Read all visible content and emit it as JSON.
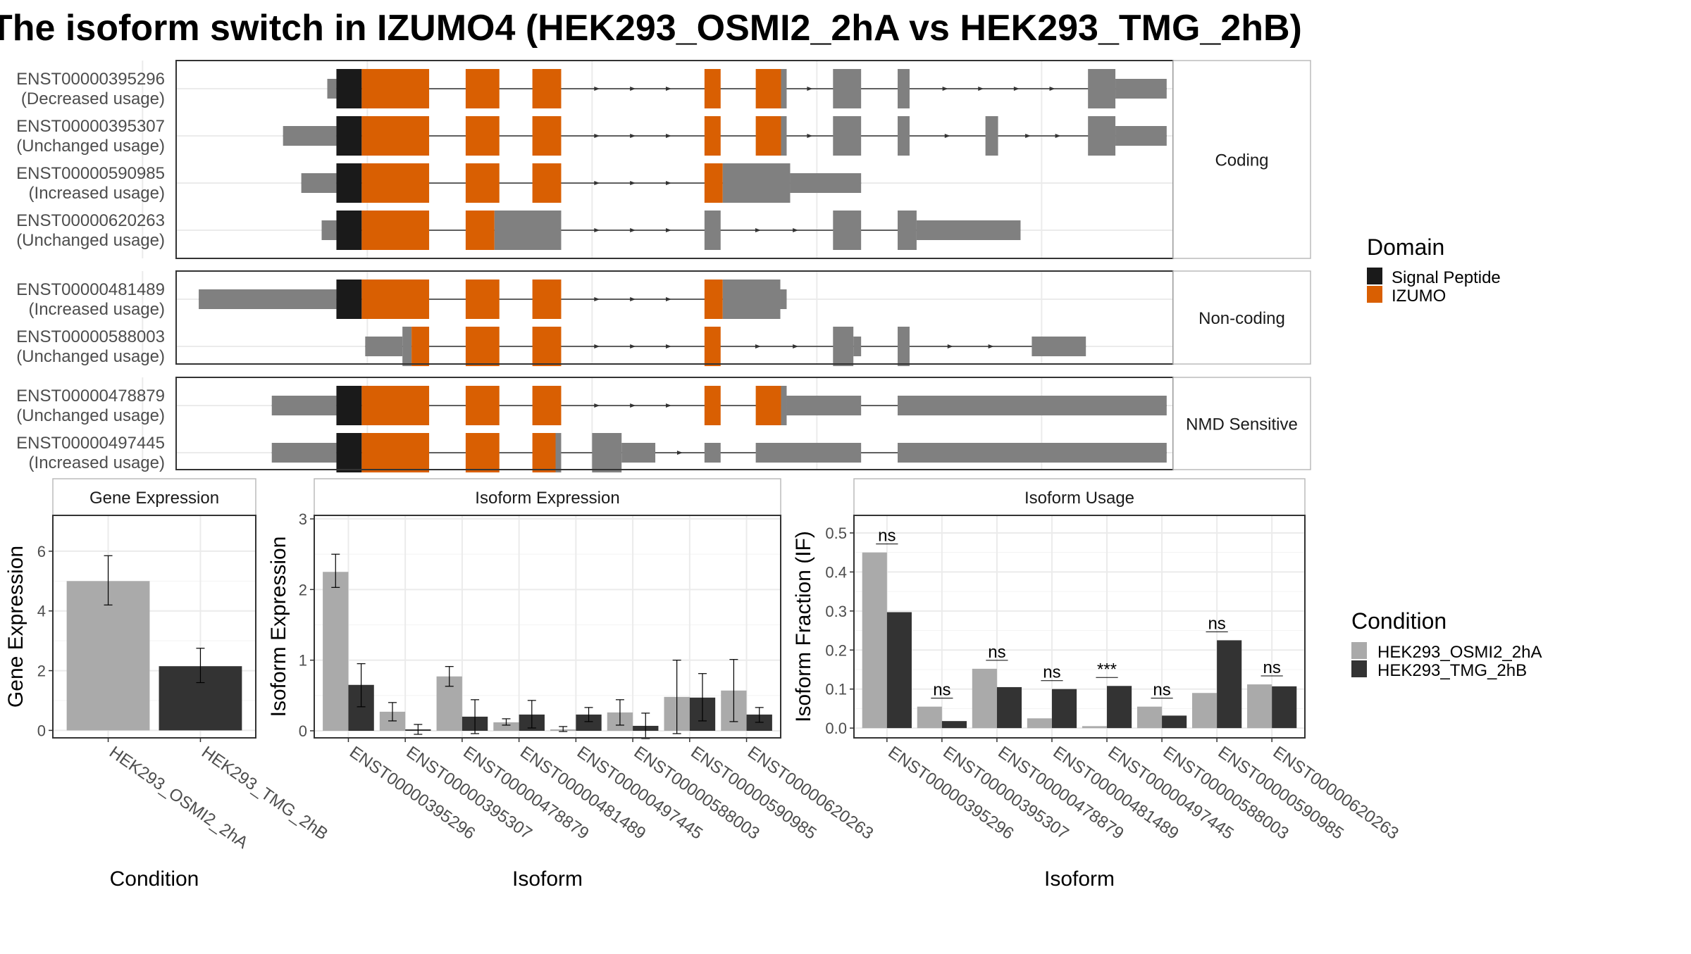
{
  "title": "The isoform switch in IZUMO4 (HEK293_OSMI2_2hA vs HEK293_TMG_2hB)",
  "colors": {
    "signal_peptide": "#1a1a1a",
    "izumo": "#d95f02",
    "exon": "#808080",
    "cond_a": "#aaaaaa",
    "cond_b": "#333333",
    "grid": "#ebebeb"
  },
  "chart_data": [
    {
      "type": "gene_structure",
      "x_range": [
        0,
        1300
      ],
      "groups": [
        {
          "label": "Coding",
          "transcripts": [
            {
              "id": "ENST00000395296",
              "usage": "(Decreased usage)",
              "exons": [
                [
                  163,
                  176,
                  "thin"
                ],
                [
                  176,
                  212,
                  "sig"
                ],
                [
                  212,
                  308,
                  "izumo"
                ],
                [
                  360,
                  408,
                  "izumo"
                ],
                [
                  455,
                  496,
                  "izumo"
                ],
                [
                  700,
                  723,
                  "izumo"
                ],
                [
                  773,
                  809,
                  "izumo"
                ],
                [
                  809,
                  817,
                  "gray"
                ],
                [
                  883,
                  923,
                  "gray"
                ],
                [
                  975,
                  992,
                  "gray"
                ],
                [
                  1246,
                  1285,
                  "gray"
                ],
                [
                  1285,
                  1358,
                  "thin"
                ]
              ]
            },
            {
              "id": "ENST00000395307",
              "usage": "(Unchanged usage)",
              "exons": [
                [
                  100,
                  176,
                  "thin"
                ],
                [
                  176,
                  212,
                  "sig"
                ],
                [
                  212,
                  308,
                  "izumo"
                ],
                [
                  360,
                  408,
                  "izumo"
                ],
                [
                  455,
                  496,
                  "izumo"
                ],
                [
                  700,
                  723,
                  "izumo"
                ],
                [
                  773,
                  809,
                  "izumo"
                ],
                [
                  809,
                  817,
                  "gray"
                ],
                [
                  883,
                  923,
                  "gray"
                ],
                [
                  975,
                  992,
                  "gray"
                ],
                [
                  1100,
                  1118,
                  "gray"
                ],
                [
                  1246,
                  1285,
                  "gray"
                ],
                [
                  1285,
                  1358,
                  "thin"
                ]
              ]
            },
            {
              "id": "ENST00000590985",
              "usage": "(Increased usage)",
              "exons": [
                [
                  126,
                  176,
                  "thin"
                ],
                [
                  176,
                  212,
                  "sig"
                ],
                [
                  212,
                  308,
                  "izumo"
                ],
                [
                  360,
                  408,
                  "izumo"
                ],
                [
                  455,
                  496,
                  "izumo"
                ],
                [
                  700,
                  726,
                  "izumo"
                ],
                [
                  726,
                  822,
                  "gray"
                ],
                [
                  822,
                  923,
                  "thin"
                ]
              ]
            },
            {
              "id": "ENST00000620263",
              "usage": "(Unchanged usage)",
              "exons": [
                [
                  155,
                  176,
                  "thin"
                ],
                [
                  176,
                  212,
                  "sig"
                ],
                [
                  212,
                  308,
                  "izumo"
                ],
                [
                  360,
                  401,
                  "izumo"
                ],
                [
                  401,
                  496,
                  "gray"
                ],
                [
                  700,
                  723,
                  "gray"
                ],
                [
                  883,
                  923,
                  "gray"
                ],
                [
                  975,
                  1002,
                  "gray"
                ],
                [
                  1002,
                  1150,
                  "thin"
                ]
              ]
            }
          ]
        },
        {
          "label": "Non-coding",
          "transcripts": [
            {
              "id": "ENST00000481489",
              "usage": "(Increased usage)",
              "exons": [
                [
                  -20,
                  176,
                  "thin"
                ],
                [
                  176,
                  212,
                  "sig"
                ],
                [
                  212,
                  308,
                  "izumo"
                ],
                [
                  360,
                  408,
                  "izumo"
                ],
                [
                  455,
                  496,
                  "izumo"
                ],
                [
                  700,
                  726,
                  "izumo"
                ],
                [
                  726,
                  808,
                  "gray"
                ],
                [
                  808,
                  817,
                  "thin"
                ]
              ]
            },
            {
              "id": "ENST00000588003",
              "usage": "(Unchanged usage)",
              "exons": [
                [
                  217,
                  270,
                  "thin"
                ],
                [
                  270,
                  283,
                  "gray"
                ],
                [
                  283,
                  308,
                  "izumo"
                ],
                [
                  360,
                  408,
                  "izumo"
                ],
                [
                  455,
                  496,
                  "izumo"
                ],
                [
                  700,
                  723,
                  "izumo"
                ],
                [
                  883,
                  912,
                  "gray"
                ],
                [
                  912,
                  923,
                  "thin"
                ],
                [
                  975,
                  992,
                  "gray"
                ],
                [
                  1166,
                  1243,
                  "thin"
                ]
              ]
            }
          ]
        },
        {
          "label": "NMD Sensitive",
          "transcripts": [
            {
              "id": "ENST00000478879",
              "usage": "(Unchanged usage)",
              "exons": [
                [
                  84,
                  176,
                  "thin"
                ],
                [
                  176,
                  212,
                  "sig"
                ],
                [
                  212,
                  308,
                  "izumo"
                ],
                [
                  360,
                  408,
                  "izumo"
                ],
                [
                  455,
                  496,
                  "izumo"
                ],
                [
                  700,
                  723,
                  "izumo"
                ],
                [
                  773,
                  809,
                  "izumo"
                ],
                [
                  809,
                  817,
                  "gray"
                ],
                [
                  817,
                  923,
                  "thin"
                ],
                [
                  975,
                  1358,
                  "thin"
                ]
              ]
            },
            {
              "id": "ENST00000497445",
              "usage": "(Increased usage)",
              "exons": [
                [
                  84,
                  176,
                  "thin"
                ],
                [
                  176,
                  212,
                  "sig"
                ],
                [
                  212,
                  308,
                  "izumo"
                ],
                [
                  360,
                  408,
                  "izumo"
                ],
                [
                  455,
                  488,
                  "izumo"
                ],
                [
                  488,
                  496,
                  "gray"
                ],
                [
                  540,
                  582,
                  "gray"
                ],
                [
                  582,
                  630,
                  "thin"
                ],
                [
                  700,
                  723,
                  "thin"
                ],
                [
                  773,
                  923,
                  "thin"
                ],
                [
                  975,
                  1358,
                  "thin"
                ]
              ]
            }
          ]
        }
      ],
      "legend": {
        "title": "Domain",
        "entries": [
          "Signal Peptide",
          "IZUMO"
        ]
      }
    },
    {
      "type": "bar",
      "panel_title": "Gene Expression",
      "xlabel": "Condition",
      "ylabel": "Gene Expression",
      "categories": [
        "HEK293_OSMI2_2hA",
        "HEK293_TMG_2hB"
      ],
      "values": [
        5.0,
        2.15
      ],
      "errors": [
        [
          4.2,
          5.85
        ],
        [
          1.6,
          2.75
        ]
      ],
      "ylim": [
        -0.25,
        7.2
      ],
      "yticks": [
        0,
        2,
        4,
        6
      ]
    },
    {
      "type": "bar",
      "panel_title": "Isoform Expression",
      "xlabel": "Isoform",
      "ylabel": "Isoform Expression",
      "categories": [
        "ENST00000395296",
        "ENST00000395307",
        "ENST00000478879",
        "ENST00000481489",
        "ENST00000497445",
        "ENST00000588003",
        "ENST00000590985",
        "ENST00000620263"
      ],
      "series": [
        {
          "name": "HEK293_OSMI2_2hA",
          "values": [
            2.25,
            0.27,
            0.77,
            0.12,
            0.02,
            0.26,
            0.48,
            0.57
          ],
          "errors": [
            [
              2.03,
              2.5
            ],
            [
              0.14,
              0.4
            ],
            [
              0.63,
              0.91
            ],
            [
              0.08,
              0.17
            ],
            [
              -0.01,
              0.06
            ],
            [
              0.08,
              0.44
            ],
            [
              -0.04,
              1.0
            ],
            [
              0.13,
              1.01
            ]
          ]
        },
        {
          "name": "HEK293_TMG_2hB",
          "values": [
            0.65,
            0.02,
            0.2,
            0.23,
            0.23,
            0.07,
            0.47,
            0.23
          ],
          "errors": [
            [
              0.34,
              0.95
            ],
            [
              -0.05,
              0.09
            ],
            [
              -0.04,
              0.44
            ],
            [
              0.04,
              0.43
            ],
            [
              0.13,
              0.33
            ],
            [
              -0.11,
              0.25
            ],
            [
              0.14,
              0.81
            ],
            [
              0.12,
              0.33
            ]
          ]
        }
      ],
      "ylim": [
        -0.1,
        3.05
      ],
      "yticks": [
        0,
        1,
        2,
        3
      ]
    },
    {
      "type": "bar",
      "panel_title": "Isoform Usage",
      "xlabel": "Isoform",
      "ylabel": "Isoform Fraction (IF)",
      "categories": [
        "ENST00000395296",
        "ENST00000395307",
        "ENST00000478879",
        "ENST00000481489",
        "ENST00000497445",
        "ENST00000588003",
        "ENST00000590985",
        "ENST00000620263"
      ],
      "series": [
        {
          "name": "HEK293_OSMI2_2hA",
          "values": [
            0.45,
            0.055,
            0.152,
            0.025,
            0.005,
            0.055,
            0.09,
            0.112
          ]
        },
        {
          "name": "HEK293_TMG_2hB",
          "values": [
            0.297,
            0.018,
            0.105,
            0.1,
            0.108,
            0.032,
            0.225,
            0.107
          ]
        }
      ],
      "significance": [
        "ns",
        "ns",
        "ns",
        "ns",
        "***",
        "ns",
        "ns",
        "ns"
      ],
      "ylim": [
        -0.025,
        0.545
      ],
      "yticks": [
        0.0,
        0.1,
        0.2,
        0.3,
        0.4,
        0.5
      ],
      "ytick_labels": [
        "0.0",
        "0.1",
        "0.2",
        "0.3",
        "0.4",
        "0.5"
      ]
    }
  ],
  "legend_condition": {
    "title": "Condition",
    "entries": [
      "HEK293_OSMI2_2hA",
      "HEK293_TMG_2hB"
    ]
  }
}
